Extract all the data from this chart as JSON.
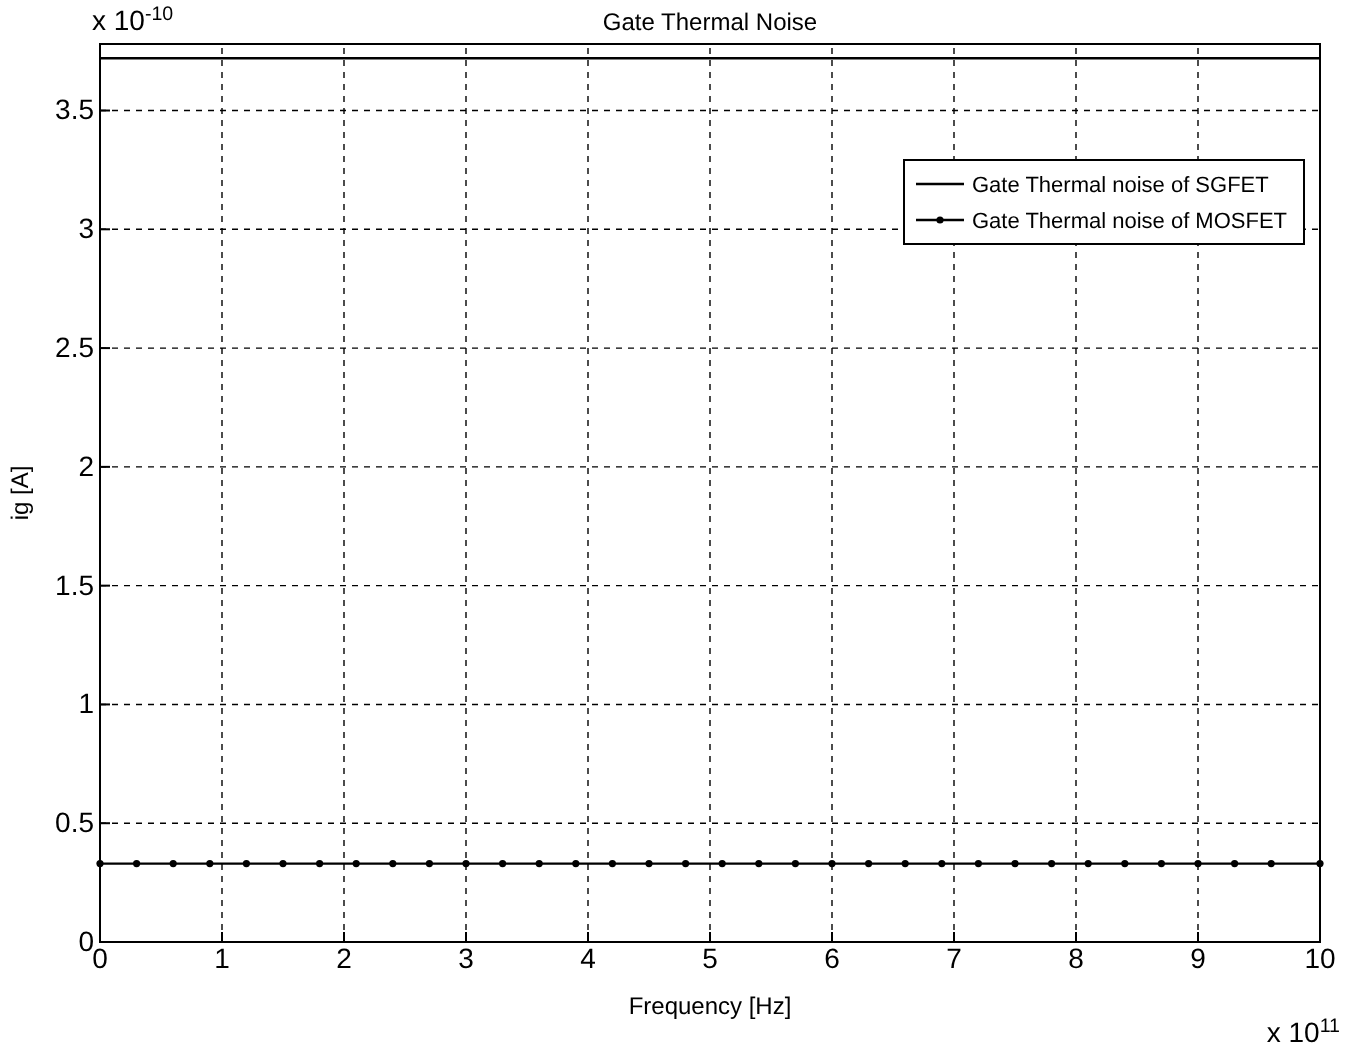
{
  "chart_data": {
    "type": "line",
    "title": "Gate Thermal Noise",
    "xlabel": "Frequency [Hz]",
    "ylabel": "ig [A]",
    "annotations": [
      "x 10$^{-10}$",
      "x 10$^{11}$"
    ],
    "xlim": [
      0,
      10
    ],
    "xticks": [
      0,
      1,
      2,
      3,
      4,
      5,
      6,
      7,
      8,
      9,
      10
    ],
    "ylim": [
      0,
      3.78
    ],
    "yticks": [
      0,
      0.5,
      1,
      1.5,
      2,
      2.5,
      3,
      3.5
    ],
    "grid": true,
    "legend": "top right",
    "series": [
      {
        "name": "Gate Thermal noise of SGFET",
        "color": "#000000",
        "marker": "none",
        "x": [
          0,
          10
        ],
        "values": [
          3.72,
          3.72
        ]
      },
      {
        "name": "Gate Thermal noise of MOSFET",
        "color": "#000000",
        "marker": "circle",
        "x": [
          0,
          0.3,
          0.6,
          0.9,
          1.2,
          1.5,
          1.8,
          2.1,
          2.4,
          2.7,
          3.0,
          3.3,
          3.6,
          3.9,
          4.2,
          4.5,
          4.8,
          5.1,
          5.4,
          5.7,
          6.0,
          6.3,
          6.6,
          6.9,
          7.2,
          7.5,
          7.8,
          8.1,
          8.4,
          8.7,
          9.0,
          9.3,
          9.6,
          10
        ],
        "values": [
          0.33,
          0.33,
          0.33,
          0.33,
          0.33,
          0.33,
          0.33,
          0.33,
          0.33,
          0.33,
          0.33,
          0.33,
          0.33,
          0.33,
          0.33,
          0.33,
          0.33,
          0.33,
          0.33,
          0.33,
          0.33,
          0.33,
          0.33,
          0.33,
          0.33,
          0.33,
          0.33,
          0.33,
          0.33,
          0.33,
          0.33,
          0.33,
          0.33,
          0.33
        ]
      }
    ]
  }
}
